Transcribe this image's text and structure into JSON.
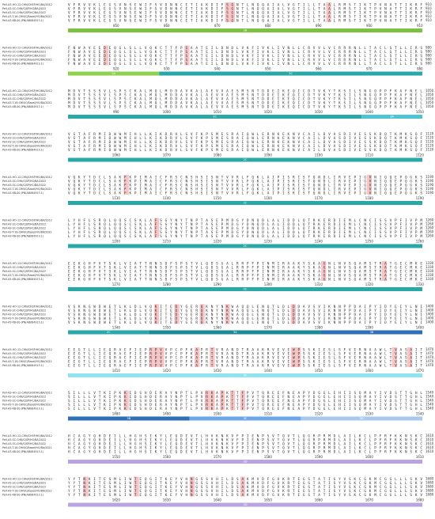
{
  "sequence_names": [
    "PeV-A3-HO-12-CHN/CHSP/HG/BA/2012",
    "PeV-A3-SC-CHN/CJSP/HG/BA/2022",
    "PeV-A3-SC-CHN/CJSP/HC/BA/2022",
    "PeV-A3-T-18-CHN/C/Basel/HO/BA/2022",
    "PeV-A3-KB-00-JPN(AB084913.1)"
  ],
  "blocks": [
    {
      "end": 910,
      "ruler": [
        850,
        860,
        870,
        880,
        890,
        900,
        910
      ],
      "highlights": [
        31,
        32,
        51
      ],
      "domains": [
        {
          "label": "2B",
          "color": "#7dc142",
          "columns": 70
        }
      ],
      "sequences": [
        "VFRVVKLEGSVNSEWIFSVDNNCETIAKDIFSGNTLNQQAIALVGTILLTAALRMSTIKTPVNATTIKRF",
        "VFRVVKLEGSVNSEWIFSVDNNCETIAKDIFSGNTLNQQAIALVGTILLTAALRMSTIKTPVNATTIKRF",
        "VFRVVKLEGSVNSEWIFSVDNNCETIAKDIFSGNTLNQQAIALVGTILLTAALRMSTIKTPVNATTIKRF",
        "VFRVVKLEGSVNSEWIFSVDNNCETIAKDIFSGNTLNQQAIALVGTILLTAALRMSTIKTPVNATTIKRF",
        "VFRVVKLEGSVNSEWIFSVDNNCETIAKDIFSGNTLNQQAIALVGTILLTAALRMSTIKTPVNATTIKRF"
      ]
    },
    {
      "end": 980,
      "ruler": [
        920,
        930,
        940,
        950,
        960,
        970,
        980
      ],
      "highlights": [
        7,
        23
      ],
      "domains": [
        {
          "label": "2A",
          "color": "#8fd14f",
          "columns": 18
        },
        {
          "label": "2C",
          "color": "#2aa8a8",
          "columns": 52
        }
      ],
      "sequences": [
        "FNWAVEEDEQGLSLLVQKCTTFPSAATEILDNDLVKFIVKLIVNLLCRVVLVCRRRNLLTACLSTLLIRS",
        "FNWAVEEDEQGLSLLVQKCTTFPSAATEILDNDLVKFIVKLIVNLLCRVVLVCRRRNLLTACLSTLLIRS",
        "FNWAVEEDEQGLSLLVQKCTTFPSAATEILDNDLVKFIVKLIVNLLCRVVLVCRRRNLLTACLSTLLIRS",
        "FNWAVEEDEQGLSLLVQKCTTFPSAATEILDNDLVKFIVKLIVNLLCRVVLVCRRRNLLTACLSTLLIRS",
        "FNWAVEEDEQGLSLLVQKCTTFPSAATEILDNDLVKFIVKLIVNLLCRVVLVCRRRNLLTACLSTLLIRS"
      ]
    },
    {
      "end": 1050,
      "ruler": [
        990,
        1000,
        1010,
        1020,
        1030,
        1040,
        1050
      ],
      "highlights": [],
      "domains": [
        {
          "label": "2C",
          "color": "#2aa8a8",
          "columns": 58
        },
        {
          "label": "3A",
          "color": "#4cc4d4",
          "columns": 12
        }
      ],
      "sequences": [
        "MDVTSSSVLSPSCKALMQLMDDAVKALAEVVAESMSNTDDEIKEQICDTVKYTKSILSNGQPPFKAFNEL",
        "MDVTSSSVLSPSCKALMQLMDDAVKALAEVVAESMSNTDDEIKEQICDTVKYTKSILSNGQPPFKAFNEL",
        "MDVTSSSVLSPSCKALMQLMDDAVKALAEVVAESMSNTDDEIKEQICDTVKYTKSILSNGQPPFKAFNEL",
        "MDVTSSSVLSPSCKALMQLMDDAVKALAEVVAESMSNTDDEIKEQICDTVKYTKSILSNGQPPFKAFNEL",
        "MDVTSSSVLSPSCKALMQLMDDAVKALAEVVAESMSNTDDEIKEQICDTVKYTKSILSNGQPPFKAFNEL"
      ]
    },
    {
      "end": 1120,
      "ruler": [
        1060,
        1070,
        1080,
        1090,
        1100,
        1110,
        1120
      ],
      "highlights": [],
      "domains": [
        {
          "label": "2C",
          "color": "#2aa8a8",
          "columns": 70
        }
      ],
      "sequences": [
        "VSTAFRMIDWWMIHLLKIKDRVLSVFKPSMESRAIQWLERNKEKNVCAILDVASDIVESSKDQTKMKSQF",
        "VSTAFRMIDWWMIHLLKIKDRVLSVFKPSMESRAIQWLERNKEKNVCAILDVASDIVESSKDQTKMKSQF",
        "VSTAFRMIDWWMIHLLKIKDRVLSVFKPSMESRAIQWLERNKEKNVCAILDVASDIVESSKDQTKMKSQF",
        "VSTAFRMIDWWMIHLLKIKDRVLSVFKPSMESRAIQWLERNKEKNVCAILDVASDIVESSKDQTKMKSQF",
        "VSTAFRMIDWWMIHLLKIKDRVLSVFKPSMESRAIQWLERNKEKNVCAILDVASDIVESSKDQTKMKSQF"
      ]
    },
    {
      "end": 1190,
      "ruler": [
        1130,
        1140,
        1150,
        1160,
        1170,
        1180,
        1190
      ],
      "highlights": [
        11,
        59
      ],
      "domains": [
        {
          "label": "2C",
          "color": "#2aa8a8",
          "columns": 70
        }
      ],
      "sequences": [
        "VQKYTDCLSAKFKPIMAICFRSCNSHSISNTVVRLFQKLAIPISRISTQNDLIRVEPIGVNIQQEPQGKS",
        "VQKYTDCLSAKFKPIMAICFRSCNSHSISNTVVRLFQKLAIPISRISTQNDLIRVEPIGVNIQQEPQGKS",
        "VQKYTDCLSAKFKPIMAICFRSCNSHSISNTVVRLFQKLAIPISRISTQNDLIRVEPIGVNIQQEPQGKS",
        "VQKYTDCLSAKFKPIMAICFRSCNSHSISNTVVRLFQKLAIPISRISTQNDLIRVEPIGVNIQQEPQGKS",
        "VQKYTDCLSAKFKPIMAICFRSCNSHSISNTVVRLFQKLAIPISRISTQNDLIRVEPIGVNIQQEPQGKS"
      ]
    },
    {
      "end": 1260,
      "ruler": [
        1200,
        1210,
        1220,
        1230,
        1240,
        1250,
        1260
      ],
      "highlights": [
        17
      ],
      "domains": [
        {
          "label": "2C",
          "color": "#2aa8a8",
          "columns": 70
        }
      ],
      "sequences": [
        "LYHFLSRQLQQSCSKLAFSGYNYTNPTASEPMDGYDNQDLALIDDLQTRKERDIEMLCNCISSVPFIVPM",
        "LYHFLSRQLQQSCSKLAFSGYNYTNPTASEPMDGYDNQDLALIDDLQTRKERDIEMLCNCISSVPFIVPM",
        "LYHFLSRQLQQSCSKLAFSGYNYTNPTASEPMDGYDNQDLALIDDLQTRKERDIEMLCNCISSVPFIVPM",
        "LYHFLSRQLQQSCSKLAFSGYNYTNPTASEPMDGYDNQDLALIDDLQTRKERDIEMLCNCISSVPFIVPM",
        "LYHFLSRQLQQSCSKLAFSGYNYTNPTASEPMDGYDNQDLALIDDLQTRKERDIEMLCNCISSVPFIVPM"
      ]
    },
    {
      "end": 1330,
      "ruler": [
        1270,
        1280,
        1290,
        1300,
        1310,
        1320,
        1330
      ],
      "highlights": [
        50,
        62
      ],
      "domains": [
        {
          "label": "2C",
          "color": "#2aa8a8",
          "columns": 70
        }
      ],
      "sequences": [
        "EEKGHFVTSKLVIATTNNSDFSPSTVLQDSGALRRPFPINMIRAAKYSKAGNLNVSQAMSTRATGECMKE",
        "EEKGHFVTSKLVIATTNNSDFSPSTVLQDSGALRRPFPINMIRAAKYSKAGNLNVSQAMSTRATGECMKE",
        "EEKGHFVTSKLVIATTNNSDFSPSTVLQDSGALRRPFPINMIRAAKYSKAGNLNVSQAMSTRATGECMKE",
        "EEKGHFVTSKLVIATTNNSDFSPSTVLQDSGALRRPFPINMIRAAKYSKAGNLNVSQAMSTRATGECMKE",
        "EEKGHFVTSKLVIATTNNSDFSPSTVLQDSGALRRPFPINMIRAAKYSKAGNLNVSQAMSTRATGECMKE"
      ]
    },
    {
      "end": 1400,
      "ruler": [
        1340,
        1350,
        1360,
        1370,
        1380,
        1390,
        1400
      ],
      "highlights": [
        17,
        21,
        26,
        31,
        44
      ],
      "domains": [
        {
          "label": "2C",
          "color": "#2aa8a8",
          "columns": 16
        },
        {
          "label": "3A",
          "color": "#1e8a99",
          "columns": 34
        },
        {
          "label": "3B",
          "color": "#2f6fb5",
          "columns": 20
        }
      ],
      "sequences": [
        "VSKNGWDWETLKLDLVQKITEDYGERQKNYNKWAQQLENQTLDLDDAVSVIKNNPPDAIPYIDYEIYLNI",
        "VSKNGWDWETLKLDLVQKITEDYGERQKNYNKWAQQLENQTLDLDDAVSVIKNNPPDAIPYIDYEIYLNI",
        "VSKNGWDWETLKLDLVQKITEDYGERQKNYNKWAQQLENQTLDLDDAVSVIKNNPPDAIPYIDYEIYLNI",
        "VSKNGWDWETLKLDLVQKITEDYGERQKNYNKWAQQLENQTLDLDDAVSVIKNNPPDAIPYIDYEIYLNI",
        "VSKNGWDWETLKLDLVQKITEDYGERQKNYNKWAQQLENQTLDLDDAVSVIKNNPPDAIPYIDYEIYLNI"
      ]
    },
    {
      "end": 1470,
      "ruler": [
        1410,
        1420,
        1430,
        1440,
        1450,
        1460,
        1470
      ],
      "highlights": [
        16,
        17,
        18,
        25,
        28,
        44,
        45,
        64,
        67
      ],
      "domains": [
        {
          "label": "3C",
          "color": "#8fe3f0",
          "columns": 70
        }
      ],
      "sequences": [
        "EEGTLLIEQRAEFIEPRPVVPCPFKAPRTVRANDTRAAKRVEVEWPSSKIESLSFVERNAAWLTVASAIT",
        "EEGTLLIEQRAEFIEPRPVVPCPFKAPRTVRANDTRAAKRVEVEWPSSKIESLSFVERNAAWLTVASAIT",
        "EEGTLLIEQRAEFIEPRPVVPCPFKAPRTVRANDTRAAKRVEVEWPSSKIESLSFVERNAAWLTVASAIT",
        "EEGTLLIEQRAEFIEPRPVVPCPFKAPRTVRANDTRAAKRVEVEWPSSKIESLSFVERNAAWLTVASAIT",
        "EEGTLLIEQRAEFIEPRPVVPCPFKAPRTVRANDTRAAKRVEVEWPSSKIESLSFVERNAAWLTVASAIT"
      ]
    },
    {
      "end": 1540,
      "ruler": [
        1480,
        1490,
        1500,
        1510,
        1520,
        1530,
        1540
      ],
      "highlights": [
        11,
        27,
        28,
        30,
        32,
        34
      ],
      "domains": [
        {
          "label": "3B",
          "color": "#2f6fb5",
          "columns": 24
        },
        {
          "label": "3C",
          "color": "#6ea6ea",
          "columns": 22
        },
        {
          "label": "3D",
          "color": "#a9c8f0",
          "columns": 24
        }
      ],
      "sequences": [
        "SILLLVTKIPKKEDSHDERAYNPTLPVRKAPKTTFPVTQREEFNEAPYDGGLEHIISQMAYIVDSTTGHL",
        "SILLLVTKIPKKEDSHDERAYNPTLPVRKAPKTTFPVTQREEFNEAPYDGGLEHIISQMAYIVDSTTGHL",
        "SILLLVTKIPKKEDSHDERAYNPTLPVRKAPKTTFPVTQREEFNEAPYDGGLEHIISQMAYIVDSTTGHL",
        "SILLLVTKIPKKEDSHDERAYNPTLPVRKAPKTTFPVTQREEFNEAPYDGGLEHIISQMAYIVDSTTGHL",
        "SILLLVTKIPKKEDSHDERAYNPTLPVRKAPKTTFPVTQREEFNEAPYDGGLEHIISQMAYIVDSTTGHL"
      ]
    },
    {
      "end": 1610,
      "ruler": [
        1550,
        1560,
        1570,
        1580,
        1590,
        1600,
        1610
      ],
      "highlights": [],
      "domains": [
        {
          "label": "3D",
          "color": "#b9a3e3",
          "columns": 70
        }
      ],
      "sequences": [
        "HCAGYQHDEILLHGHSIKYLEQDEVTLHVKNKVFPIENPSVTQVTLQGRPRMDLAILKCLPFRFKKNSKC",
        "HCAGYQHDEILLHGHSIKYLEQDEVTLHVKNKVFPIENPSVTQVTLQGRPRMDLAILKCLPFRFKKNSKC",
        "HCAGYQHDEILLHGHSIKYLEQDEVTLHVKNKVFPIENPSVTQVTLQGRPRMDLAILKCLPFRFKKNSKC",
        "HCAGYQHDEILLHGHSIKYLEQDEVTLHVKNKVFPIENPSVTQVTLQGRPRMDLAILKCLPFRFKKNSKC",
        "HCAGYQHDEILLHGHSIKYLEQDEVTLHVKNKVFPIENPSVTQVTLQGRPRMDLAILKCLPFRFKKNSKC"
      ]
    },
    {
      "end": 1680,
      "ruler": [
        1620,
        1630,
        1640,
        1650,
        1660,
        1670,
        1680
      ],
      "highlights": [
        3,
        13,
        24,
        34
      ],
      "domains": [
        {
          "label": "3D",
          "color": "#b9a3e3",
          "columns": 70
        }
      ],
      "sequences": [
        "YYTNKITESMLIWTEQGITKEYVHNGSSVHILDSAKMVDFGVKRTEGSTATISYVSKCGKMCGGLLLSKV",
        "YYTNKITESMLIWTEQGITKEYVHNGSSVHILDSAKMVDFGVKRTEGSTATISYVSKCGKMCGGLLLSKV",
        "YYTNKITESMLIWTEQGITKEYVHNGSSVHILDSAKMVDFGVKRTEGSTATISYVSKCGKMCGGLLLSKV",
        "YYTNKITESMLIWTEQGITKEYVHNGSSVHILDSAKMVDFGVKRTEGSTATISYVSKCGKMCGGLLLSKV",
        "YYTNKITESMLIWTEQGITKEYVHNGSSVHILDSAKMVDFGVKRTEGSTATISYVSKCGKMCGGLLLSKV"
      ]
    }
  ]
}
